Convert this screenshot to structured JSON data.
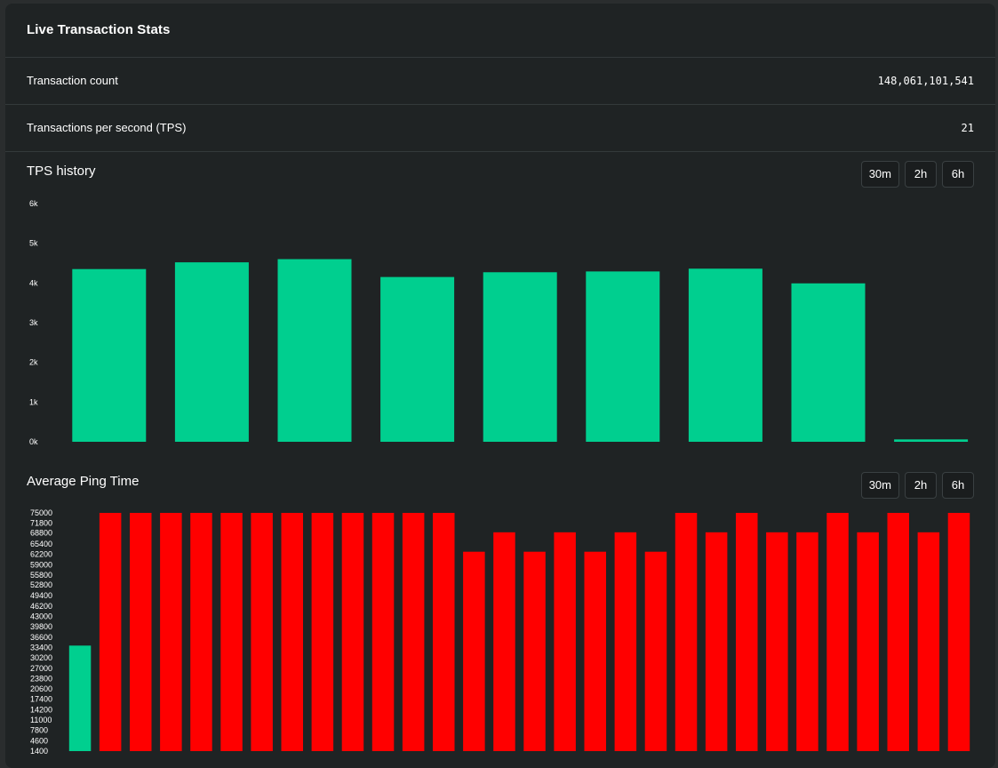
{
  "panel": {
    "title": "Live Transaction Stats"
  },
  "stats": [
    {
      "label": "Transaction count",
      "value": "148,061,101,541"
    },
    {
      "label": "Transactions per second (TPS)",
      "value": "21"
    }
  ],
  "tps_history": {
    "title": "TPS history",
    "buttons": [
      "30m",
      "2h",
      "6h"
    ]
  },
  "ping": {
    "title": "Average Ping Time",
    "buttons": [
      "30m",
      "2h",
      "6h"
    ]
  },
  "colors": {
    "good": "#00cf8f",
    "bad": "#ff0000",
    "background": "#1f2324"
  },
  "chart_data": [
    {
      "type": "bar",
      "title": "TPS history",
      "xlabel": "",
      "ylabel": "",
      "ylim": [
        0,
        6000
      ],
      "yticks": [
        0,
        1000,
        2000,
        3000,
        4000,
        5000,
        6000
      ],
      "ytick_labels": [
        "0k",
        "1k",
        "2k",
        "3k",
        "4k",
        "5k",
        "6k"
      ],
      "grid": false,
      "values": [
        4350,
        4520,
        4600,
        4150,
        4270,
        4290,
        4360,
        3990,
        60
      ]
    },
    {
      "type": "bar",
      "title": "Average Ping Time",
      "xlabel": "",
      "ylabel": "",
      "ylim": [
        1400,
        75000
      ],
      "yticks": [
        75000,
        71800,
        68800,
        65400,
        62200,
        59000,
        55800,
        52800,
        49400,
        46200,
        43000,
        39800,
        36600,
        33400,
        30200,
        27000,
        23800,
        20600,
        17400,
        14200,
        11000,
        7800,
        4600,
        1400
      ],
      "ytick_labels": [
        "75000",
        "71800",
        "68800",
        "65400",
        "62200",
        "59000",
        "55800",
        "52800",
        "49400",
        "46200",
        "43000",
        "39800",
        "36600",
        "33400",
        "30200",
        "27000",
        "23800",
        "20600",
        "17400",
        14200,
        "11000",
        "7800",
        "4600",
        "1400"
      ],
      "grid": false,
      "values": [
        34000,
        75000,
        75000,
        75000,
        75000,
        75000,
        75000,
        75000,
        75000,
        75000,
        75000,
        75000,
        75000,
        63000,
        69000,
        63000,
        69000,
        63000,
        69000,
        63000,
        75000,
        69000,
        75000,
        69000,
        69000,
        75000,
        69000,
        75000,
        69000,
        75000
      ],
      "bar_status": [
        "good",
        "bad",
        "bad",
        "bad",
        "bad",
        "bad",
        "bad",
        "bad",
        "bad",
        "bad",
        "bad",
        "bad",
        "bad",
        "bad",
        "bad",
        "bad",
        "bad",
        "bad",
        "bad",
        "bad",
        "bad",
        "bad",
        "bad",
        "bad",
        "bad",
        "bad",
        "bad",
        "bad",
        "bad",
        "bad"
      ]
    }
  ]
}
